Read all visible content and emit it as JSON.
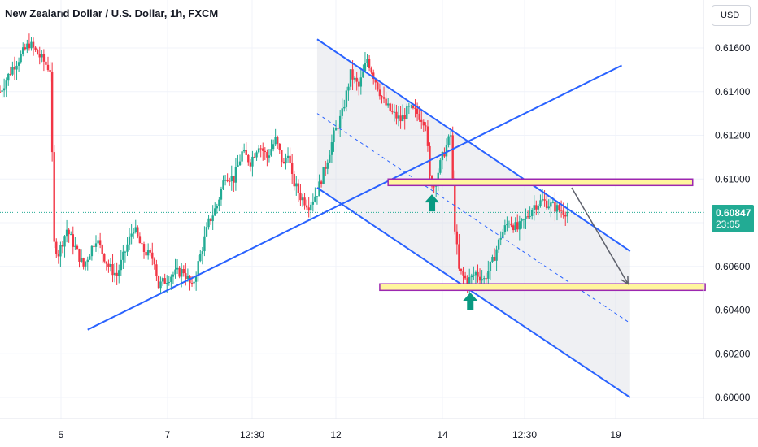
{
  "header": {
    "title": "New Zealand Dollar / U.S. Dollar, 1h, FXCM",
    "currency_button": "USD"
  },
  "price_badge": {
    "price": "0.60847",
    "countdown": "23:05"
  },
  "colors": {
    "up": "#22ab94",
    "down": "#f23645",
    "trendline": "#2962ff",
    "zone_fill": "#fff59d",
    "zone_border": "#9c27b0",
    "arrow": "#089981",
    "channel_fill": "#d1d4dc"
  },
  "chart_data": {
    "type": "candlestick",
    "symbol": "NZDUSD",
    "interval": "1h",
    "ylim": [
      0.5995,
      0.6172
    ],
    "yticks": [
      "0.61600",
      "0.61400",
      "0.61200",
      "0.61000",
      "0.60800",
      "0.60600",
      "0.60400",
      "0.60200",
      "0.60000"
    ],
    "xticks": [
      "5",
      "7",
      "12:30",
      "12",
      "14",
      "12:30",
      "19"
    ],
    "current_price": 0.60847,
    "path": [
      [
        0,
        0.614
      ],
      [
        3,
        0.6151
      ],
      [
        7,
        0.6162
      ],
      [
        10,
        0.6155
      ],
      [
        12,
        0.615
      ],
      [
        13,
        0.607
      ],
      [
        14,
        0.6066
      ],
      [
        16,
        0.6077
      ],
      [
        20,
        0.606
      ],
      [
        23,
        0.6073
      ],
      [
        26,
        0.606
      ],
      [
        28,
        0.6056
      ],
      [
        32,
        0.6078
      ],
      [
        34,
        0.6068
      ],
      [
        37,
        0.6063
      ],
      [
        38,
        0.6051
      ],
      [
        41,
        0.6056
      ],
      [
        44,
        0.6058
      ],
      [
        46,
        0.605
      ],
      [
        48,
        0.6065
      ],
      [
        50,
        0.608
      ],
      [
        52,
        0.6088
      ],
      [
        54,
        0.6102
      ],
      [
        56,
        0.61
      ],
      [
        58,
        0.6112
      ],
      [
        60,
        0.6108
      ],
      [
        62,
        0.6116
      ],
      [
        64,
        0.611
      ],
      [
        66,
        0.6118
      ],
      [
        68,
        0.6106
      ],
      [
        69,
        0.6113
      ],
      [
        70,
        0.61
      ],
      [
        72,
        0.6092
      ],
      [
        74,
        0.6088
      ],
      [
        76,
        0.6094
      ],
      [
        78,
        0.6106
      ],
      [
        80,
        0.612
      ],
      [
        82,
        0.613
      ],
      [
        84,
        0.6148
      ],
      [
        86,
        0.6142
      ],
      [
        88,
        0.6155
      ],
      [
        90,
        0.6145
      ],
      [
        92,
        0.6135
      ],
      [
        94,
        0.613
      ],
      [
        96,
        0.6127
      ],
      [
        98,
        0.6132
      ],
      [
        100,
        0.613
      ],
      [
        102,
        0.6126
      ],
      [
        103,
        0.61
      ],
      [
        104,
        0.6097
      ],
      [
        106,
        0.611
      ],
      [
        108,
        0.612
      ],
      [
        109,
        0.6078
      ],
      [
        110,
        0.6058
      ],
      [
        112,
        0.6053
      ],
      [
        114,
        0.6057
      ],
      [
        116,
        0.6054
      ],
      [
        118,
        0.6062
      ],
      [
        120,
        0.6074
      ],
      [
        122,
        0.6081
      ],
      [
        124,
        0.6077
      ],
      [
        126,
        0.6082
      ],
      [
        128,
        0.6088
      ],
      [
        130,
        0.609
      ],
      [
        132,
        0.6088
      ],
      [
        134,
        0.6086
      ],
      [
        136,
        0.6085
      ]
    ],
    "trendlines": [
      {
        "name": "support-line",
        "x": [
          21,
          149
        ],
        "y": [
          0.6031,
          0.6152
        ]
      },
      {
        "name": "channel-upper",
        "x": [
          76,
          151
        ],
        "y": [
          0.6164,
          0.6067
        ]
      },
      {
        "name": "channel-lower",
        "x": [
          76,
          151
        ],
        "y": [
          0.6096,
          0.6
        ]
      },
      {
        "name": "channel-mid",
        "x": [
          76,
          151
        ],
        "y": [
          0.613,
          0.6034
        ]
      }
    ],
    "zones": [
      {
        "name": "resistance-zone",
        "x": [
          93,
          166
        ],
        "y": [
          0.6097,
          0.61
        ]
      },
      {
        "name": "support-zone",
        "x": [
          91,
          169
        ],
        "y": [
          0.6049,
          0.6052
        ]
      }
    ],
    "up_arrows": [
      {
        "x": 103.5,
        "y": 0.6093
      },
      {
        "x": 112.7,
        "y": 0.6048
      }
    ],
    "projection": {
      "x": [
        137,
        150.5
      ],
      "y": [
        0.6096,
        0.6052
      ]
    }
  }
}
